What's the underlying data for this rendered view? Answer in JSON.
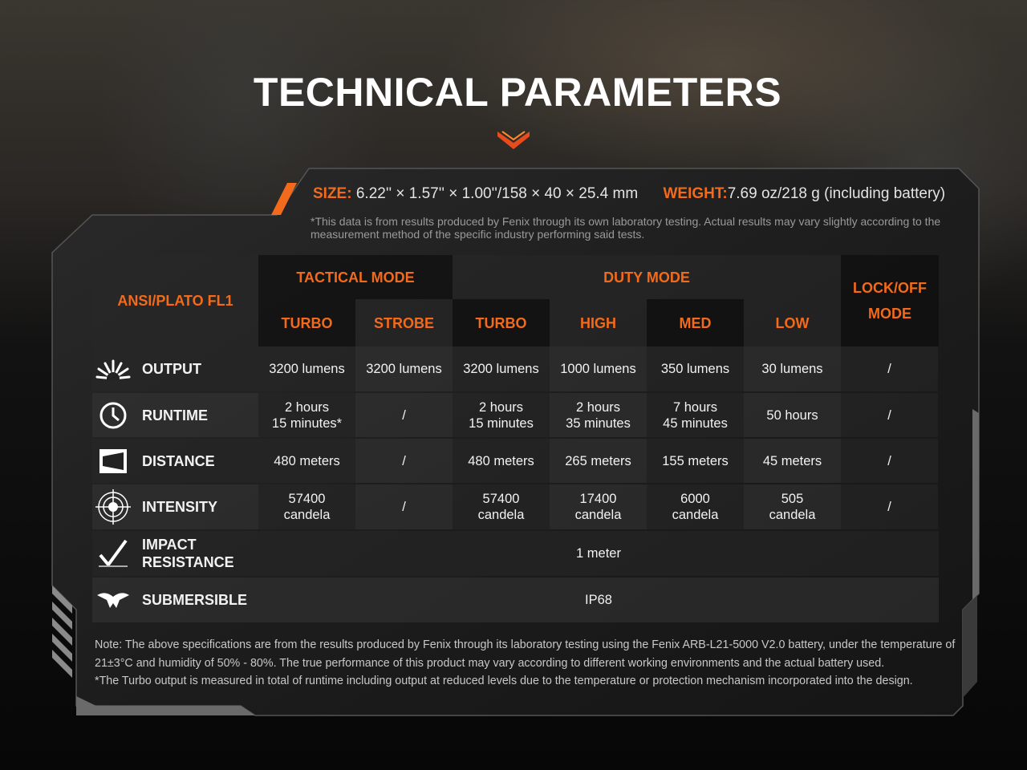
{
  "title": "TECHNICAL PARAMETERS",
  "colors": {
    "accent": "#f26a1b",
    "chevron": "#e84b1c"
  },
  "spec": {
    "size_label": "SIZE:",
    "size_value": "6.22'' × 1.57'' × 1.00''/158 × 40 × 25.4 mm",
    "weight_label": "WEIGHT:",
    "weight_value": "7.69 oz/218 g (including battery)",
    "disclaimer": "*This data is from results produced by Fenix through its own laboratory testing. Actual results may vary slightly according to the measurement method of the specific industry performing said tests."
  },
  "table": {
    "corner": "ANSI/PLATO FL1",
    "groups": [
      "TACTICAL MODE",
      "DUTY MODE",
      "LOCK/OFF\nMODE"
    ],
    "modes": [
      "TURBO",
      "STROBE",
      "TURBO",
      "HIGH",
      "MED",
      "LOW"
    ],
    "rows": [
      {
        "label": "OUTPUT",
        "icon": "light-burst-icon",
        "values": [
          "3200 lumens",
          "3200 lumens",
          "3200 lumens",
          "1000 lumens",
          "350 lumens",
          "30 lumens",
          "/"
        ]
      },
      {
        "label": "RUNTIME",
        "icon": "clock-icon",
        "values": [
          "2 hours\n15 minutes*",
          "/",
          "2 hours\n15 minutes",
          "2 hours\n35 minutes",
          "7 hours\n45 minutes",
          "50 hours",
          "/"
        ]
      },
      {
        "label": "DISTANCE",
        "icon": "beam-distance-icon",
        "values": [
          "480 meters",
          "/",
          "480 meters",
          "265 meters",
          "155 meters",
          "45 meters",
          "/"
        ]
      },
      {
        "label": "INTENSITY",
        "icon": "target-icon",
        "values": [
          "57400\ncandela",
          "/",
          "57400\ncandela",
          "17400\ncandela",
          "6000\ncandela",
          "505\ncandela",
          "/"
        ]
      },
      {
        "label": "IMPACT\nRESISTANCE",
        "icon": "impact-check-icon",
        "span": "1 meter"
      },
      {
        "label": "SUBMERSIBLE",
        "icon": "water-icon",
        "span": "IP68"
      }
    ]
  },
  "note": "Note: The above specifications are from the results produced by Fenix through its laboratory testing using the Fenix ARB-L21-5000 V2.0 battery, under the temperature of 21±3°C and humidity of 50% - 80%. The true performance of this product may vary according to different working environments and the actual battery used.\n*The Turbo output is measured in total of runtime including output at reduced levels due to the temperature or protection mechanism incorporated into the design."
}
